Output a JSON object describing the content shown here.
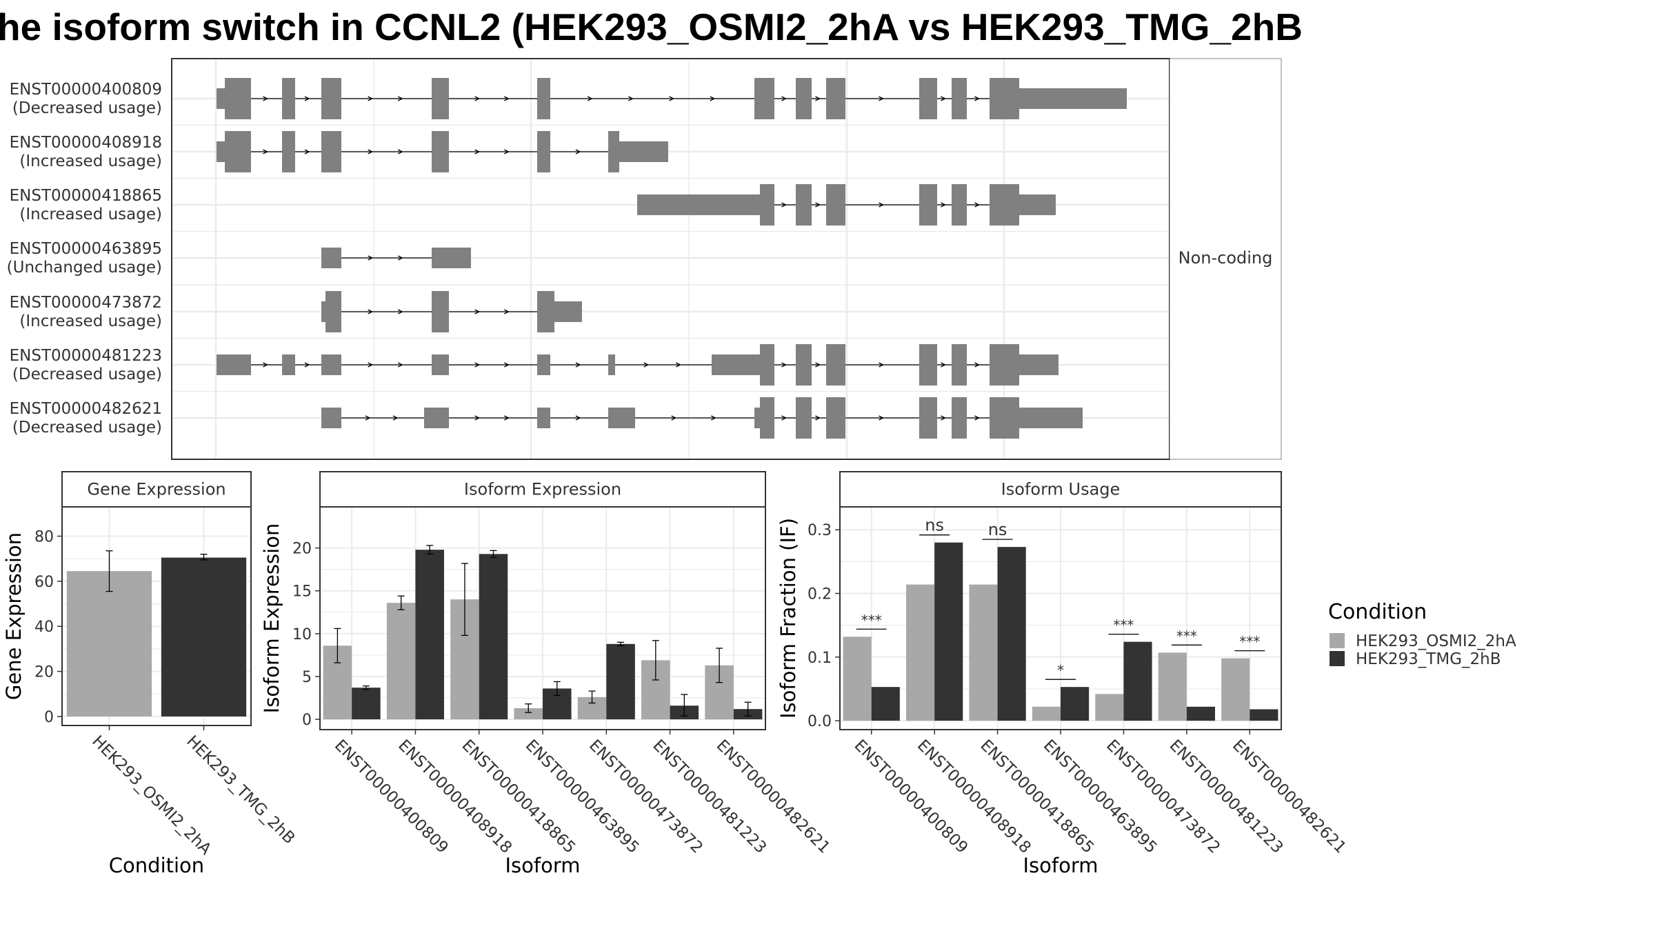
{
  "title": "he isoform switch in CCNL2 (HEK293_OSMI2_2hA vs HEK293_TMG_2hB",
  "structure": {
    "facet_label": "Non-coding",
    "transcripts": [
      {
        "id": "ENST00000400809",
        "usage": "(Decreased usage)"
      },
      {
        "id": "ENST00000408918",
        "usage": "(Increased usage)"
      },
      {
        "id": "ENST00000418865",
        "usage": "(Increased usage)"
      },
      {
        "id": "ENST00000463895",
        "usage": "(Unchanged usage)"
      },
      {
        "id": "ENST00000473872",
        "usage": "(Increased usage)"
      },
      {
        "id": "ENST00000481223",
        "usage": "(Decreased usage)"
      },
      {
        "id": "ENST00000482621",
        "usage": "(Decreased usage)"
      }
    ]
  },
  "colors": {
    "cond1": "#A8A8A8",
    "cond2": "#333333",
    "exon": "#808080",
    "grid": "#EBEBEB",
    "strip": "#FFFFFF"
  },
  "legend": {
    "title": "Condition",
    "items": [
      "HEK293_OSMI2_2hA",
      "HEK293_TMG_2hB"
    ]
  },
  "chart_data": [
    {
      "type": "bar",
      "title": "Gene Expression",
      "xlabel": "Condition",
      "ylabel": "Gene Expression",
      "categories": [
        "HEK293_OSMI2_2hA",
        "HEK293_TMG_2hB"
      ],
      "values": [
        64.5,
        70.5
      ],
      "errors": [
        [
          55.5,
          73.5
        ],
        [
          69.5,
          72.0
        ]
      ],
      "ylim": [
        -4,
        93
      ],
      "yticks": [
        0,
        20,
        40,
        60,
        80
      ]
    },
    {
      "type": "bar",
      "title": "Isoform Expression",
      "xlabel": "Isoform",
      "ylabel": "Isoform Expression",
      "categories": [
        "ENST00000400809",
        "ENST00000408918",
        "ENST00000418865",
        "ENST00000463895",
        "ENST00000473872",
        "ENST00000481223",
        "ENST00000482621"
      ],
      "series": [
        {
          "name": "HEK293_OSMI2_2hA",
          "values": [
            8.6,
            13.6,
            14.0,
            1.3,
            2.6,
            6.9,
            6.3
          ],
          "errors": [
            [
              6.6,
              10.6
            ],
            [
              12.8,
              14.4
            ],
            [
              9.8,
              18.2
            ],
            [
              0.8,
              1.8
            ],
            [
              1.9,
              3.3
            ],
            [
              4.6,
              9.2
            ],
            [
              4.3,
              8.3
            ]
          ]
        },
        {
          "name": "HEK293_TMG_2hB",
          "values": [
            3.7,
            19.8,
            19.3,
            3.6,
            8.8,
            1.6,
            1.2
          ],
          "errors": [
            [
              3.5,
              3.9
            ],
            [
              19.3,
              20.3
            ],
            [
              18.9,
              19.7
            ],
            [
              2.8,
              4.4
            ],
            [
              8.6,
              9.0
            ],
            [
              0.4,
              2.9
            ],
            [
              0.4,
              2.0
            ]
          ]
        }
      ],
      "ylim": [
        -1.2,
        24.8
      ],
      "yticks": [
        0,
        5,
        10,
        15,
        20
      ]
    },
    {
      "type": "bar",
      "title": "Isoform Usage",
      "xlabel": "Isoform",
      "ylabel": "Isoform Fraction (IF)",
      "categories": [
        "ENST00000400809",
        "ENST00000408918",
        "ENST00000418865",
        "ENST00000463895",
        "ENST00000473872",
        "ENST00000481223",
        "ENST00000482621"
      ],
      "series": [
        {
          "name": "HEK293_OSMI2_2hA",
          "values": [
            0.132,
            0.214,
            0.214,
            0.022,
            0.042,
            0.107,
            0.098
          ]
        },
        {
          "name": "HEK293_TMG_2hB",
          "values": [
            0.053,
            0.28,
            0.273,
            0.053,
            0.124,
            0.022,
            0.018
          ]
        }
      ],
      "significance": [
        "***",
        "ns",
        "ns",
        "*",
        "***",
        "***",
        "***"
      ],
      "ylim": [
        -0.014,
        0.336
      ],
      "yticks": [
        0.0,
        0.1,
        0.2,
        0.3
      ],
      "ytick_labels": [
        "0.0",
        "0.1",
        "0.2",
        "0.3"
      ]
    }
  ]
}
